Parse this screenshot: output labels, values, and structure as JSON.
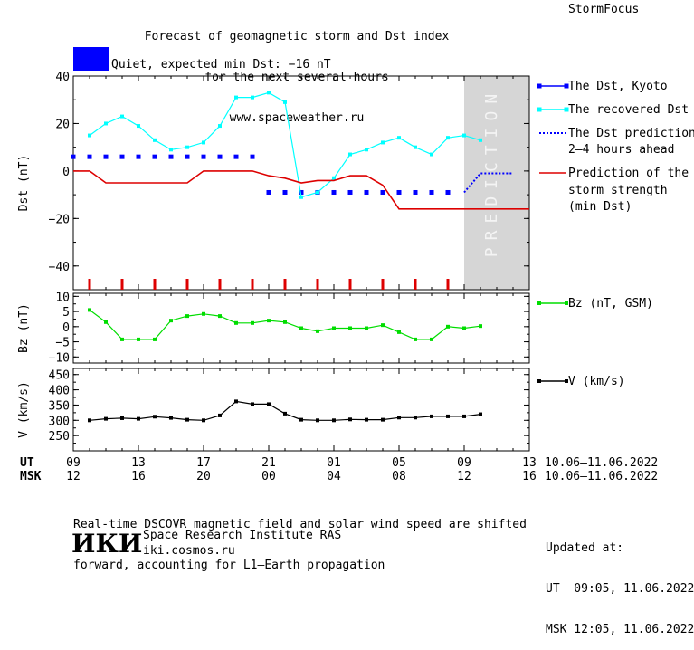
{
  "header": {
    "title_lines": [
      "Forecast of geomagnetic storm and Dst index",
      "for the next several hours",
      "www.spaceweather.ru"
    ],
    "brand": "StormFocus"
  },
  "status": {
    "label": "Quiet, expected min Dst: −16 nT",
    "color": "#0000ff"
  },
  "chart_data": [
    {
      "type": "line",
      "ylabel": "Dst (nT)",
      "ylim": [
        -50,
        40
      ],
      "yticks": [
        40,
        20,
        0,
        -20,
        -40
      ],
      "xlim": [
        9,
        37
      ],
      "shaded_region": {
        "from": 33,
        "to": 37,
        "label": "PREDICTION"
      },
      "series": [
        {
          "name": "The Dst, Kyoto",
          "color": "#0000ff",
          "style": "squares",
          "x": [
            9,
            10,
            11,
            12,
            13,
            14,
            15,
            16,
            17,
            18,
            19,
            20,
            21,
            22,
            23,
            24,
            25,
            26,
            27,
            28,
            29,
            30,
            31,
            32
          ],
          "y": [
            6,
            6,
            6,
            6,
            6,
            6,
            6,
            6,
            6,
            6,
            6,
            6,
            -9,
            -9,
            -9,
            -9,
            -9,
            -9,
            -9,
            -9,
            -9,
            -9,
            -9,
            -9
          ]
        },
        {
          "name": "The recovered Dst",
          "color": "#00ffff",
          "style": "line-squares",
          "x": [
            10,
            11,
            12,
            13,
            14,
            15,
            16,
            17,
            18,
            19,
            20,
            21,
            22,
            23,
            24,
            25,
            26,
            27,
            28,
            29,
            30,
            31,
            32,
            33,
            34
          ],
          "y": [
            15,
            20,
            23,
            19,
            13,
            9,
            10,
            12,
            19,
            31,
            31,
            33,
            29,
            -11,
            -9,
            -3,
            7,
            9,
            12,
            14,
            10,
            7,
            14,
            15,
            13
          ]
        },
        {
          "name": "The Dst prediction 2–4 hours ahead",
          "color": "#0000ff",
          "style": "dotted",
          "x": [
            33,
            34,
            35,
            36
          ],
          "y": [
            -9,
            -1,
            -1,
            -1
          ]
        },
        {
          "name": "Prediction of the storm strength (min Dst)",
          "color": "#dd0000",
          "style": "line",
          "x": [
            9,
            10,
            11,
            12,
            13,
            14,
            15,
            16,
            17,
            18,
            19,
            20,
            21,
            22,
            23,
            24,
            25,
            26,
            27,
            28,
            29,
            30,
            31,
            32,
            33,
            34,
            35,
            36,
            37
          ],
          "y": [
            0,
            0,
            -5,
            -5,
            -5,
            -5,
            -5,
            -5,
            0,
            0,
            0,
            0,
            -2,
            -3,
            -5,
            -4,
            -4,
            -2,
            -2,
            -6,
            -16,
            -16,
            -16,
            -16,
            -16,
            -16,
            -16,
            -16,
            -16
          ]
        }
      ],
      "markers": {
        "color": "#dd0000",
        "x": [
          10,
          12,
          14,
          16,
          18,
          20,
          22,
          24,
          26,
          28,
          30,
          32
        ]
      },
      "legend": [
        "The Dst, Kyoto",
        "The recovered Dst",
        "The Dst prediction",
        "2–4 hours ahead",
        "Prediction of the",
        "storm strength",
        "(min Dst)"
      ]
    },
    {
      "type": "line",
      "ylabel": "Bz (nT)",
      "ylim": [
        -12,
        11
      ],
      "yticks": [
        10,
        5,
        0,
        -5,
        -10
      ],
      "series": [
        {
          "name": "Bz (nT, GSM)",
          "color": "#00dd00",
          "x": [
            10,
            11,
            12,
            13,
            14,
            15,
            16,
            17,
            18,
            19,
            20,
            21,
            22,
            23,
            24,
            25,
            26,
            27,
            28,
            29,
            30,
            31,
            32,
            33,
            34
          ],
          "y": [
            5.5,
            1.5,
            -4.2,
            -4.2,
            -4.2,
            2.0,
            3.5,
            4.2,
            3.5,
            1.2,
            1.2,
            2.0,
            1.5,
            -0.5,
            -1.5,
            -0.5,
            -0.5,
            -0.5,
            0.5,
            -1.8,
            -4.2,
            -4.2,
            0,
            -0.5,
            0.2
          ]
        }
      ],
      "legend": [
        "Bz (nT, GSM)"
      ]
    },
    {
      "type": "line",
      "ylabel": "V (km/s)",
      "ylim": [
        200,
        470
      ],
      "yticks": [
        450,
        400,
        350,
        300,
        250
      ],
      "series": [
        {
          "name": "V (km/s)",
          "color": "#000000",
          "x": [
            10,
            11,
            12,
            13,
            14,
            15,
            16,
            17,
            18,
            19,
            20,
            21,
            22,
            23,
            24,
            25,
            26,
            27,
            28,
            29,
            30,
            31,
            32,
            33,
            34
          ],
          "y": [
            300,
            305,
            307,
            305,
            312,
            308,
            302,
            300,
            316,
            362,
            353,
            353,
            322,
            302,
            300,
            300,
            303,
            302,
            302,
            309,
            309,
            313,
            313,
            313,
            320
          ]
        }
      ],
      "legend": [
        "V (km/s)"
      ]
    }
  ],
  "axis": {
    "ut_label": "UT",
    "msk_label": "MSK",
    "ut_ticks": [
      "09",
      "13",
      "17",
      "21",
      "01",
      "05",
      "09",
      "13"
    ],
    "msk_ticks": [
      "12",
      "16",
      "20",
      "00",
      "04",
      "08",
      "12",
      "16"
    ],
    "date_range_ut": "10.06–11.06.2022",
    "date_range_msk": "10.06–11.06.2022"
  },
  "footer": {
    "note_lines": [
      "Real-time DSCOVR magnetic field and solar wind speed are shifted",
      "forward, accounting for L1–Earth propagation"
    ],
    "logo_text": "ИКИ",
    "institute": "Space Research Institute RAS",
    "url": "iki.cosmos.ru",
    "updated_lines": [
      "Updated at:",
      "UT  09:05, 11.06.2022",
      "MSK 12:05, 11.06.2022"
    ]
  }
}
